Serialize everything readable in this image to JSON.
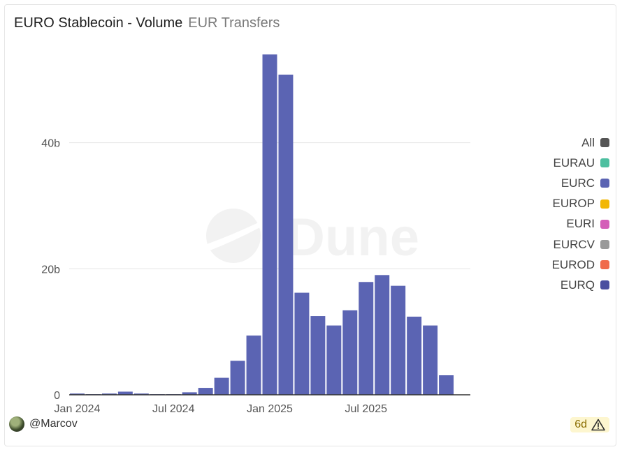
{
  "header": {
    "title": "EURO Stablecoin - Volume",
    "subtitle": "EUR Transfers"
  },
  "footer": {
    "username": "@Marcov",
    "age_badge": "6d"
  },
  "colors": {
    "eurc": "#5b64b3",
    "gridline": "#e5e5e5",
    "axis": "#333333",
    "watermark": "#e8e8e8",
    "badge_bg": "#fdf6cf"
  },
  "icons": {
    "watermark": "dune-logo",
    "badge": "warning-icon"
  },
  "chart_data": {
    "type": "bar",
    "stacked": true,
    "watermark": "Dune",
    "x_tick_labels": [
      "Jan 2024",
      "Jul 2024",
      "Jan 2025",
      "Jul 2025"
    ],
    "y_tick_labels": [
      "0",
      "20b",
      "40b"
    ],
    "y_ticks": [
      0,
      20,
      40
    ],
    "ylim": [
      0,
      56
    ],
    "y_unit": "billions",
    "grid": true,
    "legend_position": "right",
    "categories": [
      "2024-01",
      "2024-02",
      "2024-03",
      "2024-04",
      "2024-05",
      "2024-06",
      "2024-07",
      "2024-08",
      "2024-09",
      "2024-10",
      "2024-11",
      "2024-12",
      "2025-01",
      "2025-02",
      "2025-03",
      "2025-04",
      "2025-05",
      "2025-06",
      "2025-07",
      "2025-08",
      "2025-09",
      "2025-10",
      "2025-11",
      "2025-12",
      "2026-01"
    ],
    "series": [
      {
        "name": "EURC",
        "color": "#5b64b3",
        "values": [
          0.2,
          0.1,
          0.2,
          0.5,
          0.2,
          0.1,
          0.1,
          0.4,
          1.1,
          2.7,
          5.4,
          9.4,
          54.0,
          50.8,
          16.2,
          12.5,
          11.0,
          13.4,
          17.9,
          19.0,
          17.3,
          12.4,
          11.0,
          3.1,
          0
        ]
      }
    ],
    "legend": [
      {
        "name": "All",
        "color": "#555555"
      },
      {
        "name": "EURAU",
        "color": "#4dbfa0"
      },
      {
        "name": "EURC",
        "color": "#5b64b3"
      },
      {
        "name": "EUROP",
        "color": "#f2b705"
      },
      {
        "name": "EURI",
        "color": "#d45fb8"
      },
      {
        "name": "EURCV",
        "color": "#999999"
      },
      {
        "name": "EUROD",
        "color": "#f06a4a"
      },
      {
        "name": "EURQ",
        "color": "#4a4fa0"
      }
    ]
  }
}
